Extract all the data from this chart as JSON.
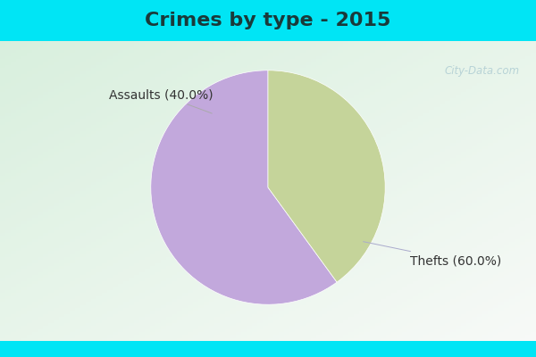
{
  "title": "Crimes by type - 2015",
  "slices": [
    {
      "label": "Thefts",
      "pct": 60.0,
      "color": "#c2a8dc"
    },
    {
      "label": "Assaults",
      "pct": 40.0,
      "color": "#c5d49a"
    }
  ],
  "bg_cyan": "#00e5f5",
  "bg_green_light": "#d8f0e0",
  "bg_green_dark": "#b8ddc0",
  "title_fontsize": 16,
  "label_fontsize": 10,
  "watermark": "City-Data.com",
  "startangle": 90,
  "top_bar_height": 0.115,
  "bottom_bar_height": 0.045
}
